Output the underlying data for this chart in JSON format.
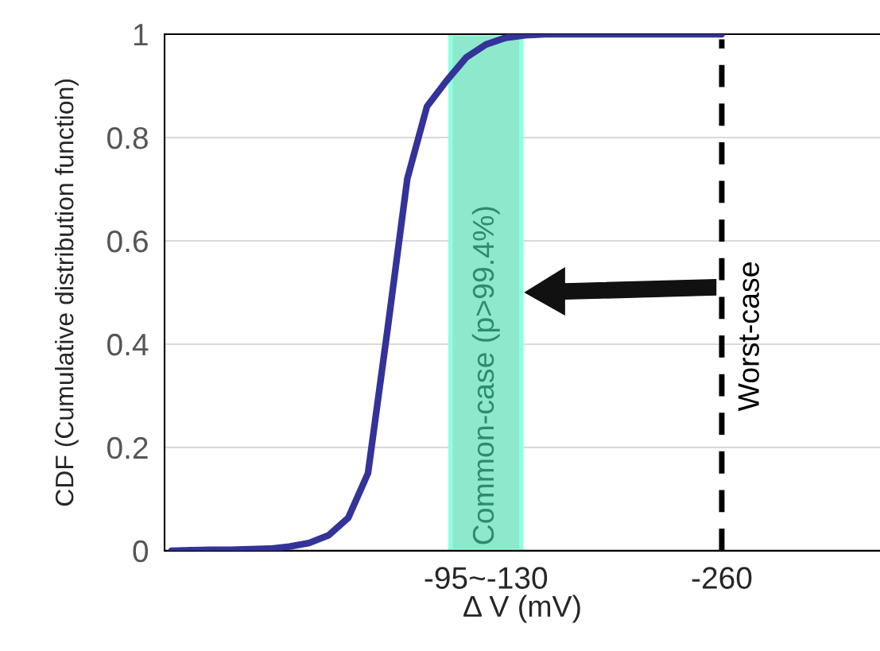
{
  "chart_data": {
    "type": "line",
    "xlabel": "Δ V (mV)",
    "ylabel": "CDF (Cumulative distribution function)",
    "categories": [
      null,
      null,
      null,
      null,
      null,
      null,
      null,
      null,
      null,
      null,
      null,
      null,
      null,
      null,
      null,
      null,
      "-95~-130",
      null,
      null,
      null,
      null,
      null,
      null,
      null,
      null,
      null,
      null,
      null,
      "-260",
      null,
      null,
      null,
      null,
      null,
      null,
      null,
      null
    ],
    "series": [
      {
        "color": "#333399",
        "values": [
          0,
          0.001,
          0.002,
          0.002,
          0.003,
          0.004,
          0.008,
          0.015,
          0.03,
          0.064,
          0.15,
          0.43,
          0.72,
          0.86,
          0.91,
          0.955,
          0.98,
          0.993,
          0.998,
          1,
          1,
          1,
          1,
          1,
          1,
          1,
          1,
          1,
          1,
          null,
          null,
          null,
          null,
          null,
          null,
          null,
          null
        ]
      }
    ],
    "ylim": [
      0,
      1
    ],
    "yticks": [
      0,
      0.2,
      0.4,
      0.6,
      0.8,
      1
    ],
    "grid": "y",
    "legend": false,
    "marker": "none",
    "line_style": "solid",
    "annotations": [
      "Common-case (p>99.4%)"
    ],
    "ref_lines": [
      {
        "axis": "x",
        "value": "-260",
        "label": "Worst-case",
        "color": "#000000",
        "line_style": "dashed"
      }
    ]
  }
}
